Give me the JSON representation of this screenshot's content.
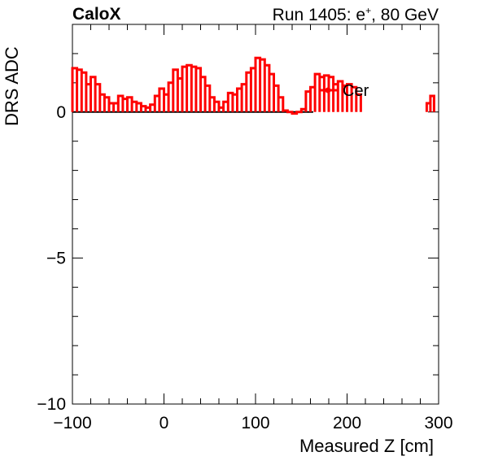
{
  "header": {
    "brand": "CaloX",
    "run_prefix": "Run 1405: e",
    "run_sup": "+",
    "run_suffix": ", 80 GeV"
  },
  "chart_data": {
    "type": "line",
    "title": "",
    "xlabel": "Measured Z [cm]",
    "ylabel": "DRS ADC",
    "xlim": [
      -100,
      300
    ],
    "ylim": [
      -10,
      3
    ],
    "xticks": [
      -100,
      0,
      100,
      200,
      300
    ],
    "xtick_labels": [
      "−100",
      "0",
      "100",
      "200",
      "300"
    ],
    "yticks": [
      -10,
      -5,
      0
    ],
    "ytick_labels": [
      "−10",
      "−5",
      "0"
    ],
    "grid": false,
    "legend_position": "top-right",
    "series": [
      {
        "name": "Cer",
        "color": "#ff0000",
        "style": "step-with-drops-to-zero",
        "segments": [
          {
            "x_start": -100,
            "bin_width": 5,
            "values": [
              1.5,
              1.45,
              1.35,
              0.95,
              1.2,
              0.95,
              0.6,
              0.5,
              0.3,
              0.3,
              0.55,
              0.45,
              0.5,
              0.35,
              0.3,
              0.2,
              0.15,
              0.25,
              0.55,
              0.8,
              0.6,
              1.0,
              1.45,
              1.15,
              1.55,
              1.6,
              1.55,
              1.5,
              1.2,
              0.9,
              0.5,
              0.35,
              0.15,
              0.35,
              0.65,
              0.6,
              0.8,
              0.95,
              1.35,
              1.5,
              1.85,
              1.8,
              1.6,
              1.3,
              0.9,
              0.5,
              0.05,
              0.0,
              -0.05,
              0.0,
              0.1,
              0.7,
              0.85,
              1.3,
              1.2,
              1.25,
              1.2,
              0.95,
              1.05,
              0.9,
              0.95,
              0.85,
              0.6
            ]
          },
          {
            "x_start": 287,
            "bin_width": 4,
            "values": [
              0.3,
              0.55
            ]
          }
        ]
      }
    ]
  }
}
